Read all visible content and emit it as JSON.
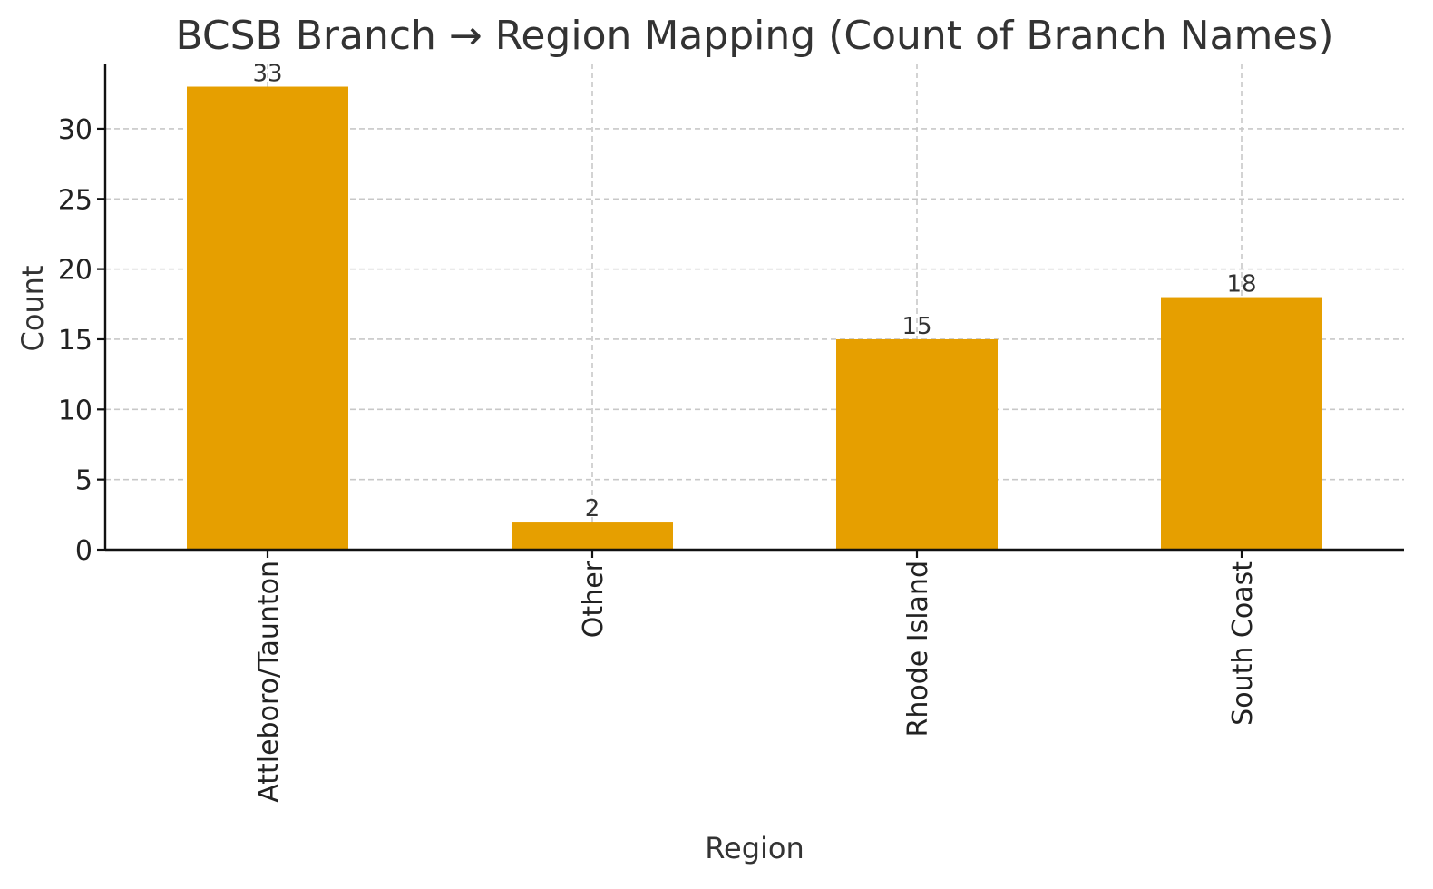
{
  "chart_data": {
    "type": "bar",
    "title": "BCSB Branch → Region Mapping (Count of Branch Names)",
    "xlabel": "Region",
    "ylabel": "Count",
    "categories": [
      "Attleboro/Taunton",
      "Other",
      "Rhode Island",
      "South Coast"
    ],
    "values": [
      33,
      2,
      15,
      18
    ],
    "data_labels": [
      "33",
      "2",
      "15",
      "18"
    ],
    "ylim": [
      0,
      34.65
    ],
    "yticks": [
      0,
      5,
      10,
      15,
      20,
      25,
      30
    ],
    "grid": true,
    "bar_color": "#E69F00",
    "x_tick_rotation": "vertical"
  }
}
